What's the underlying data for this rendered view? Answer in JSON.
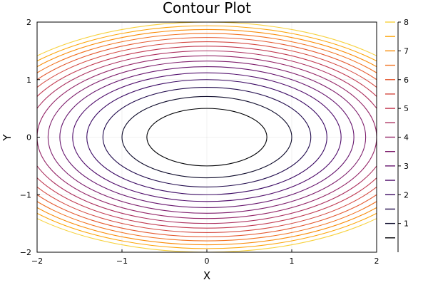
{
  "chart_data": {
    "type": "contour",
    "title": "Contour Plot",
    "xlabel": "X",
    "ylabel": "Y",
    "xlim": [
      -2,
      2
    ],
    "ylim": [
      -2,
      2
    ],
    "x_ticks": [
      -2,
      -1,
      0,
      1,
      2
    ],
    "y_ticks": [
      -2,
      -1,
      0,
      1,
      2
    ],
    "x_tick_labels": [
      "−2",
      "−1",
      "0",
      "1",
      "2"
    ],
    "y_tick_labels": [
      "−2",
      "−1",
      "0",
      "1",
      "2"
    ],
    "function": "x^2 + 2*y^2",
    "levels": [
      0.5,
      1.0,
      1.5,
      2.0,
      2.5,
      3.0,
      3.5,
      4.0,
      4.5,
      5.0,
      5.5,
      6.0,
      6.5,
      7.0,
      7.5,
      8.0
    ],
    "level_colors": [
      "#000004",
      "#0d0a2a",
      "#220c4e",
      "#3a0963",
      "#510e6c",
      "#67166e",
      "#7e1e6c",
      "#942668",
      "#ab2f5e",
      "#c13a51",
      "#d44a42",
      "#e45a31",
      "#f1711f",
      "#f98c0a",
      "#fca50a",
      "#f7d13d"
    ],
    "colorbar": {
      "ticks": [
        1,
        2,
        3,
        4,
        5,
        6,
        7,
        8
      ],
      "tick_labels": [
        "1",
        "2",
        "3",
        "4",
        "5",
        "6",
        "7",
        "8"
      ],
      "range": [
        0,
        8
      ]
    },
    "grid": true
  }
}
